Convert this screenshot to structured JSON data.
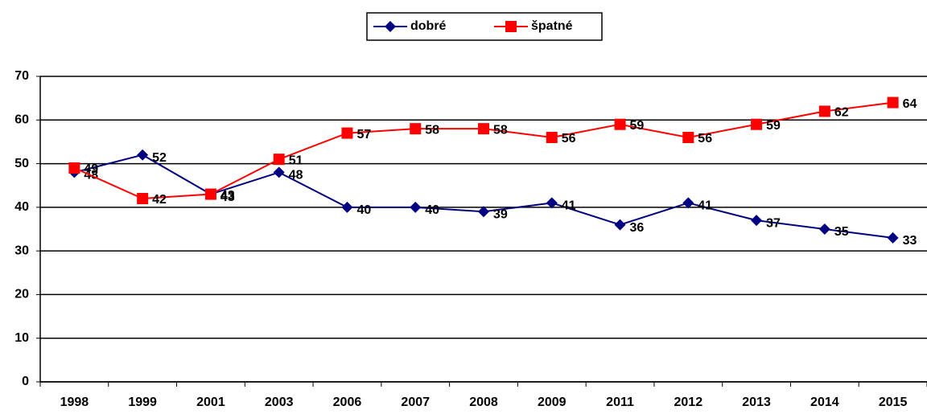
{
  "chart_data": {
    "type": "line",
    "categories": [
      "1998",
      "1999",
      "2001",
      "2003",
      "2006",
      "2007",
      "2008",
      "2009",
      "2011",
      "2012",
      "2013",
      "2014",
      "2015"
    ],
    "series": [
      {
        "name": "dobré",
        "color": "#000080",
        "marker": "diamond",
        "values": [
          48,
          52,
          43,
          48,
          40,
          40,
          39,
          41,
          36,
          41,
          37,
          35,
          33
        ]
      },
      {
        "name": "špatné",
        "color": "#ff0000",
        "marker": "square",
        "values": [
          49,
          42,
          43,
          51,
          57,
          58,
          58,
          56,
          59,
          56,
          59,
          62,
          64
        ]
      }
    ],
    "ylim": [
      0,
      70
    ],
    "yticks": [
      0,
      10,
      20,
      30,
      40,
      50,
      60,
      70
    ],
    "grid": true,
    "legend": "top"
  }
}
